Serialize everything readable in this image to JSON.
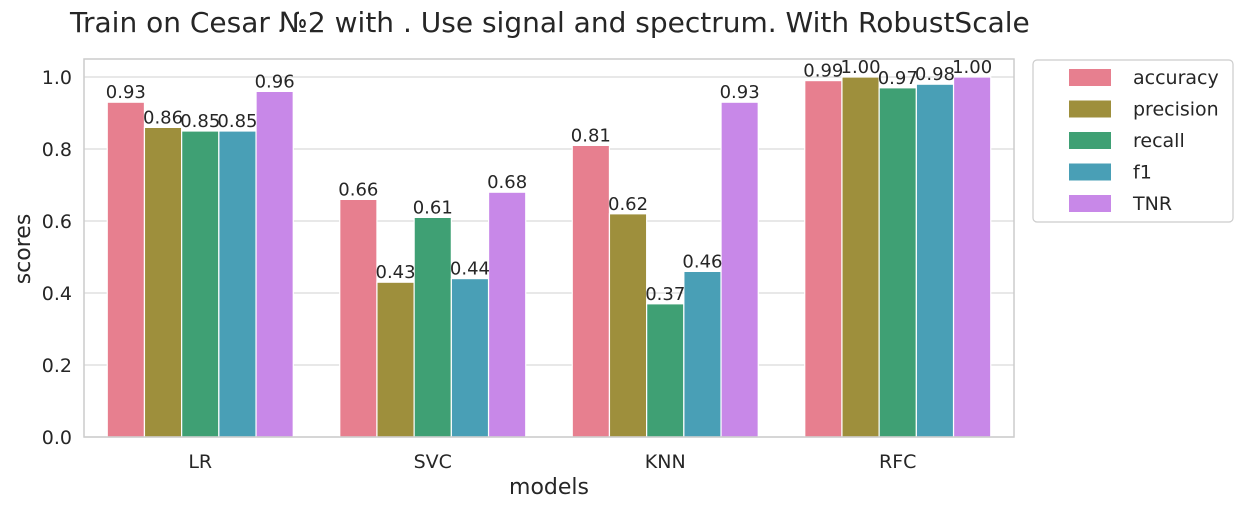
{
  "chart_data": {
    "type": "bar",
    "title": "Train on Cesar №2 with . Use signal and spectrum. With RobustScale",
    "xlabel": "models",
    "ylabel": "scores",
    "categories": [
      "LR",
      "SVC",
      "KNN",
      "RFC"
    ],
    "ylim": [
      0,
      1.05
    ],
    "yticks": [
      0.0,
      0.2,
      0.4,
      0.6,
      0.8,
      1.0
    ],
    "ytick_labels": [
      "0.0",
      "0.2",
      "0.4",
      "0.6",
      "0.8",
      "1.0"
    ],
    "grid": true,
    "legend_placement": "outside-top-right",
    "series": [
      {
        "name": "accuracy",
        "color": "#e77f8f",
        "values": [
          0.93,
          0.66,
          0.81,
          0.99
        ],
        "labels": [
          "0.93",
          "0.66",
          "0.81",
          "0.99"
        ]
      },
      {
        "name": "precision",
        "color": "#9e8f3c",
        "values": [
          0.86,
          0.43,
          0.62,
          1.0
        ],
        "labels": [
          "0.86",
          "0.43",
          "0.62",
          "1.00"
        ]
      },
      {
        "name": "recall",
        "color": "#3fa074",
        "values": [
          0.85,
          0.61,
          0.37,
          0.97
        ],
        "labels": [
          "0.85",
          "0.61",
          "0.37",
          "0.97"
        ]
      },
      {
        "name": "f1",
        "color": "#499fb6",
        "values": [
          0.85,
          0.44,
          0.46,
          0.98
        ],
        "labels": [
          "0.85",
          "0.44",
          "0.46",
          "0.98"
        ]
      },
      {
        "name": "TNR",
        "color": "#c888e8",
        "values": [
          0.96,
          0.68,
          0.93,
          1.0
        ],
        "labels": [
          "0.96",
          "0.68",
          "0.93",
          "1.00"
        ]
      }
    ]
  }
}
